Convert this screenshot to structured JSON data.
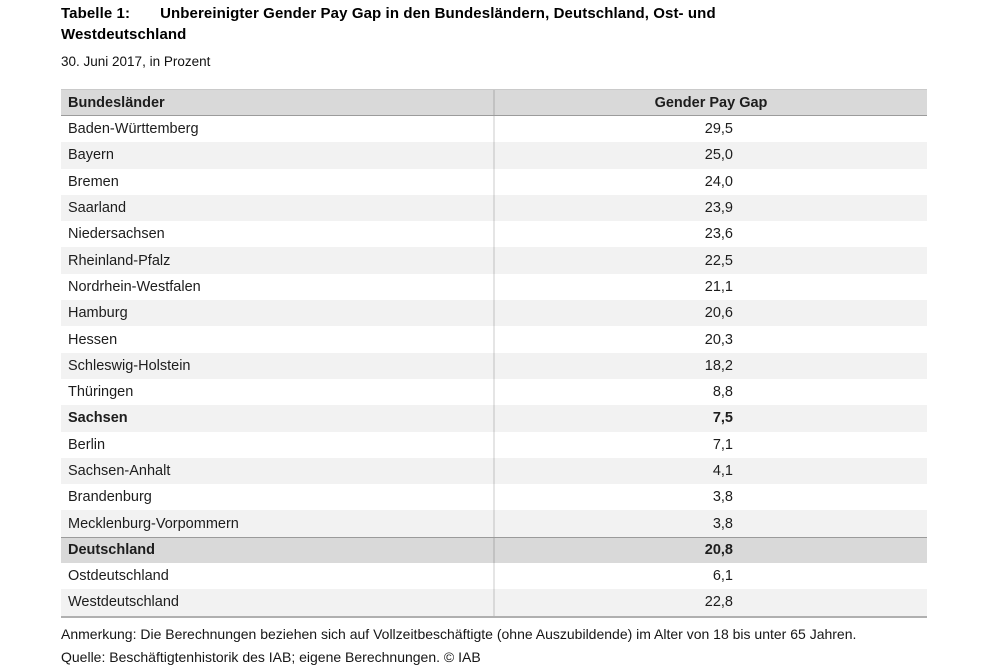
{
  "title": {
    "prefix": "Tabelle 1:",
    "rest": "Unbereinigter Gender Pay Gap in den Bundesländern, Deutschland, Ost- und\nWestdeutschland"
  },
  "subtitle": "30. Juni 2017, in Prozent",
  "table": {
    "col1_header": "Bundesländer",
    "col2_header": "Gender Pay Gap",
    "rows": [
      {
        "label": "Baden-Württemberg",
        "value": "29,5"
      },
      {
        "label": "Bayern",
        "value": "25,0"
      },
      {
        "label": "Bremen",
        "value": "24,0"
      },
      {
        "label": "Saarland",
        "value": "23,9"
      },
      {
        "label": "Niedersachsen",
        "value": "23,6"
      },
      {
        "label": "Rheinland-Pfalz",
        "value": "22,5"
      },
      {
        "label": "Nordrhein-Westfalen",
        "value": "21,1"
      },
      {
        "label": "Hamburg",
        "value": "20,6"
      },
      {
        "label": "Hessen",
        "value": "20,3"
      },
      {
        "label": "Schleswig-Holstein",
        "value": "18,2"
      },
      {
        "label": "Thüringen",
        "value": "8,8"
      },
      {
        "label": "Sachsen",
        "value": "7,5",
        "bold": true
      },
      {
        "label": "Berlin",
        "value": "7,1"
      },
      {
        "label": "Sachsen-Anhalt",
        "value": "4,1"
      },
      {
        "label": "Brandenburg",
        "value": "3,8"
      },
      {
        "label": "Mecklenburg-Vorpommern",
        "value": "3,8"
      },
      {
        "label": "Deutschland",
        "value": "20,8",
        "summary": true
      },
      {
        "label": "Ostdeutschland",
        "value": "6,1"
      },
      {
        "label": "Westdeutschland",
        "value": "22,8"
      }
    ]
  },
  "notes": {
    "anmerkung": "Anmerkung: Die Berechnungen beziehen sich auf Vollzeitbeschäftigte (ohne Auszubildende) im Alter von 18 bis unter 65 Jahren.",
    "quelle": "Quelle: Beschäftigtenhistorik des IAB; eigene Berechnungen. © IAB"
  },
  "colors": {
    "header_bg": "#d9d9d9",
    "stripe_bg": "#f2f2f2",
    "summary_bg": "#d9d9d9",
    "rule": "#9b9b9b",
    "text": "#1d1d1d"
  },
  "chart_data": {
    "type": "table",
    "title": "Tabelle 1: Unbereinigter Gender Pay Gap in den Bundesländern, Deutschland, Ost- und Westdeutschland",
    "subtitle": "30. Juni 2017, in Prozent",
    "unit": "Prozent",
    "columns": [
      "Bundesländer",
      "Gender Pay Gap"
    ],
    "rows": [
      [
        "Baden-Württemberg",
        29.5
      ],
      [
        "Bayern",
        25.0
      ],
      [
        "Bremen",
        24.0
      ],
      [
        "Saarland",
        23.9
      ],
      [
        "Niedersachsen",
        23.6
      ],
      [
        "Rheinland-Pfalz",
        22.5
      ],
      [
        "Nordrhein-Westfalen",
        21.1
      ],
      [
        "Hamburg",
        20.6
      ],
      [
        "Hessen",
        20.3
      ],
      [
        "Schleswig-Holstein",
        18.2
      ],
      [
        "Thüringen",
        8.8
      ],
      [
        "Sachsen",
        7.5
      ],
      [
        "Berlin",
        7.1
      ],
      [
        "Sachsen-Anhalt",
        4.1
      ],
      [
        "Brandenburg",
        3.8
      ],
      [
        "Mecklenburg-Vorpommern",
        3.8
      ],
      [
        "Deutschland",
        20.8
      ],
      [
        "Ostdeutschland",
        6.1
      ],
      [
        "Westdeutschland",
        22.8
      ]
    ],
    "notes": [
      "Anmerkung: Die Berechnungen beziehen sich auf Vollzeitbeschäftigte (ohne Auszubildende) im Alter von 18 bis unter 65 Jahren.",
      "Quelle: Beschäftigtenhistorik des IAB; eigene Berechnungen. © IAB"
    ]
  }
}
